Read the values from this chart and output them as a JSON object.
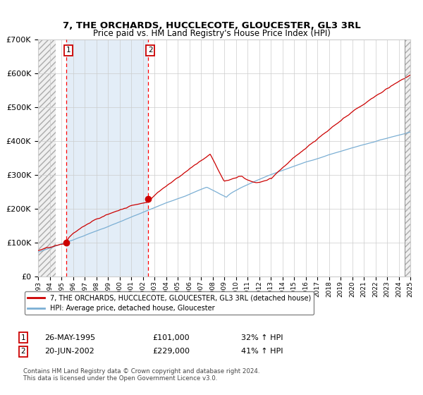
{
  "title": "7, THE ORCHARDS, HUCCLECOTE, GLOUCESTER, GL3 3RL",
  "subtitle": "Price paid vs. HM Land Registry's House Price Index (HPI)",
  "legend_line1": "7, THE ORCHARDS, HUCCLECOTE, GLOUCESTER, GL3 3RL (detached house)",
  "legend_line2": "HPI: Average price, detached house, Gloucester",
  "transaction1_date": "26-MAY-1995",
  "transaction1_price": 101000,
  "transaction1_hpi": "32% ↑ HPI",
  "transaction1_year": 1995.4,
  "transaction2_date": "20-JUN-2002",
  "transaction2_price": 229000,
  "transaction2_hpi": "41% ↑ HPI",
  "transaction2_year": 2002.46,
  "xmin": 1993,
  "xmax": 2025,
  "ymin": 0,
  "ymax": 700000,
  "shade_color": "#dce9f5",
  "grid_color": "#cccccc",
  "red_line_color": "#cc0000",
  "blue_line_color": "#7bafd4",
  "hatch_left_end": 1994.5,
  "hatch_right_start": 2024.5,
  "footnote": "Contains HM Land Registry data © Crown copyright and database right 2024.\nThis data is licensed under the Open Government Licence v3.0."
}
